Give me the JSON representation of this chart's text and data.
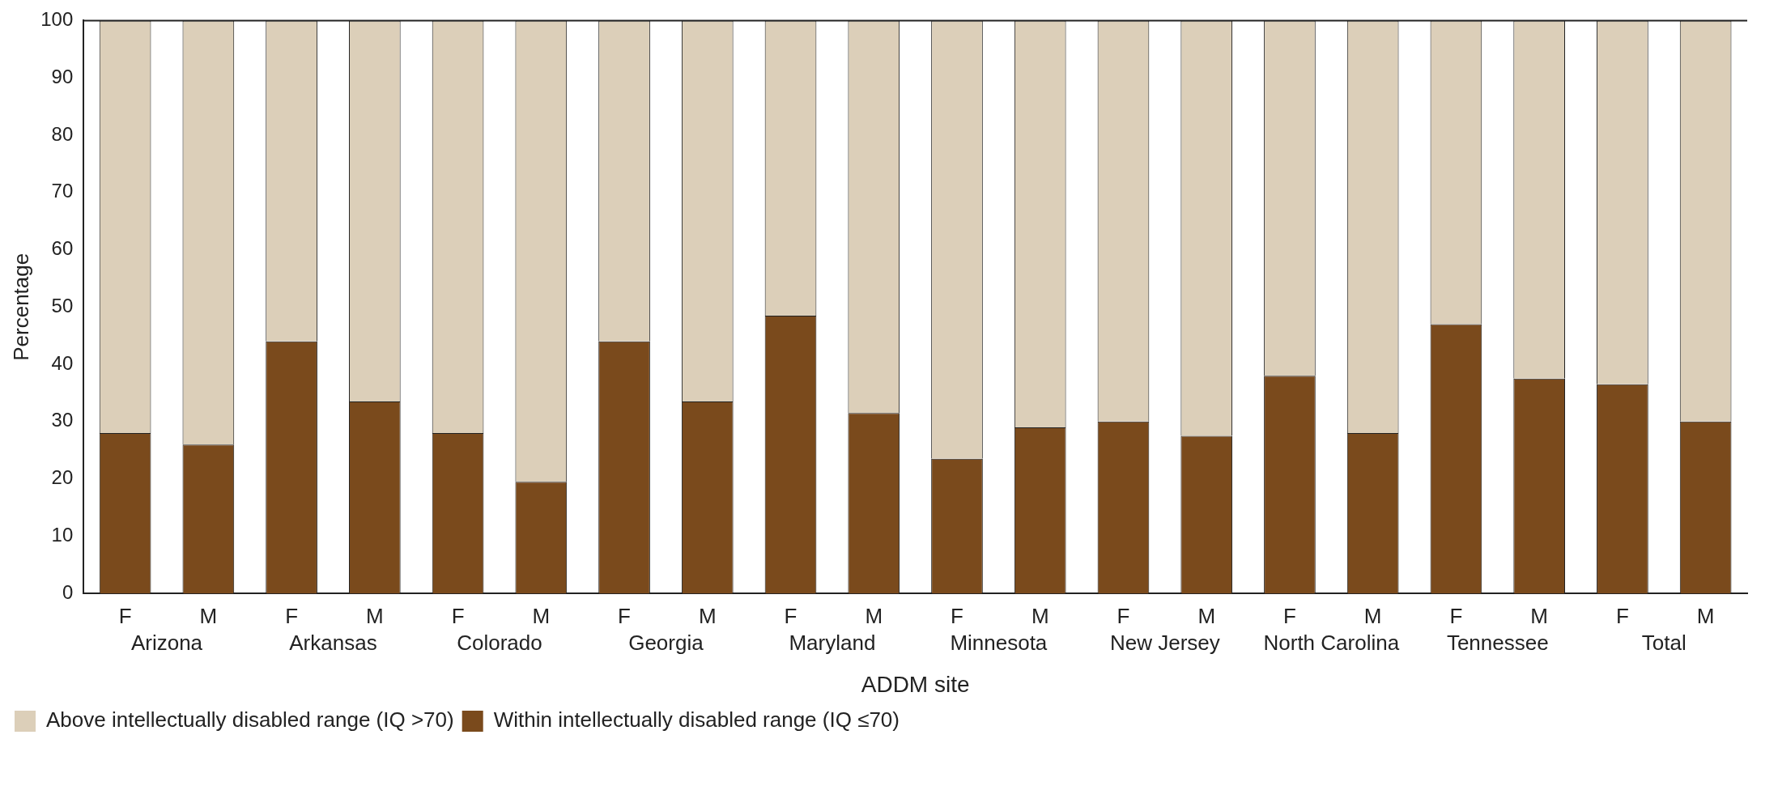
{
  "chart_data": {
    "type": "bar",
    "stacked": true,
    "xlabel": "ADDM site",
    "ylabel": "Percentage",
    "categories": [
      "F",
      "M",
      "F",
      "M",
      "F",
      "M",
      "F",
      "M",
      "F",
      "M",
      "F",
      "M",
      "F",
      "M",
      "F",
      "M",
      "F",
      "M",
      "F",
      "M"
    ],
    "annotations": [
      "Arizona",
      "Arkansas",
      "Colorado",
      "Georgia",
      "Maryland",
      "Minnesota",
      "New Jersey",
      "North Carolina",
      "Tennessee",
      "Total"
    ],
    "series": [
      {
        "name": "Within intellectually disabled range (IQ ≤70)",
        "color": "#7a4a1c",
        "values": [
          28,
          26,
          44,
          33.5,
          28,
          19.5,
          44,
          33.5,
          48.5,
          31.5,
          23.5,
          29,
          30,
          27.5,
          38,
          28,
          47,
          37.5,
          36.5,
          30
        ]
      },
      {
        "name": "Above intellectually disabled range (IQ >70)",
        "color": "#dccfb9",
        "values": [
          72,
          74,
          56,
          66.5,
          72,
          80.5,
          56,
          66.5,
          51.5,
          68.5,
          76.5,
          71,
          70,
          72.5,
          62,
          72,
          53,
          62.5,
          63.5,
          70
        ]
      }
    ],
    "ylim": [
      0,
      100
    ],
    "yticks": [
      0,
      10,
      20,
      30,
      40,
      50,
      60,
      70,
      80,
      90,
      100
    ],
    "grid": false,
    "legend": "bottom left"
  }
}
